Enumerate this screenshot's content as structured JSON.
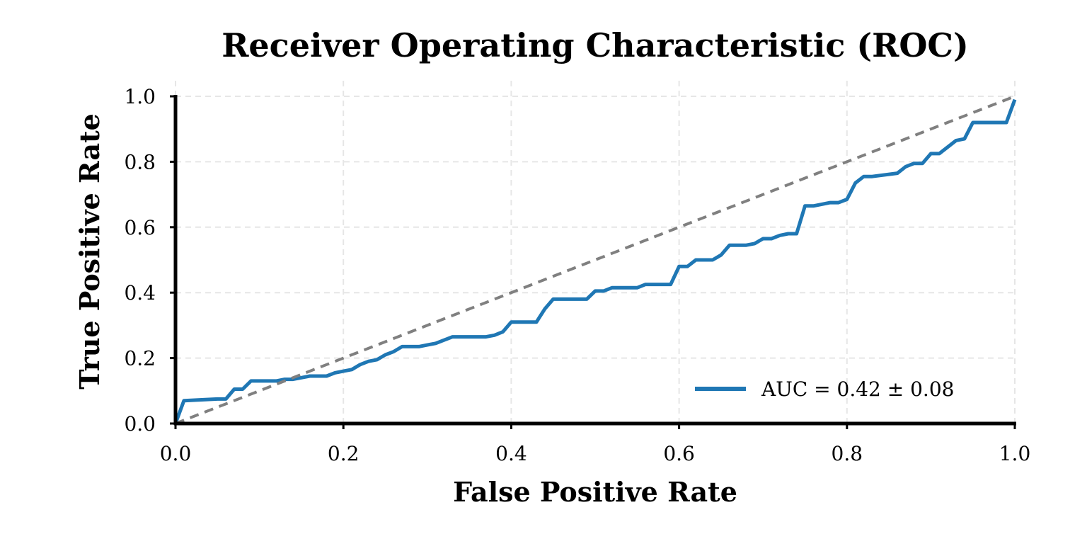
{
  "chart_data": {
    "type": "line",
    "title": "Receiver Operating Characteristic (ROC)",
    "xlabel": "False Positive Rate",
    "ylabel": "True Positive Rate",
    "xlim": [
      0,
      1
    ],
    "ylim": [
      0,
      1
    ],
    "xticks": [
      "0.0",
      "0.2",
      "0.4",
      "0.6",
      "0.8",
      "1.0"
    ],
    "yticks": [
      "0.0",
      "0.2",
      "0.4",
      "0.6",
      "0.8",
      "1.0"
    ],
    "grid": true,
    "legend_position": "lower-right",
    "series": [
      {
        "name": "AUC = 0.42 ± 0.08",
        "color": "#1f77b4",
        "style": "solid",
        "x": [
          0.0,
          0.01,
          0.05,
          0.06,
          0.07,
          0.08,
          0.09,
          0.12,
          0.13,
          0.14,
          0.15,
          0.16,
          0.18,
          0.19,
          0.2,
          0.21,
          0.22,
          0.23,
          0.24,
          0.25,
          0.26,
          0.27,
          0.29,
          0.3,
          0.31,
          0.32,
          0.33,
          0.34,
          0.37,
          0.38,
          0.39,
          0.4,
          0.43,
          0.44,
          0.45,
          0.49,
          0.5,
          0.51,
          0.52,
          0.55,
          0.56,
          0.59,
          0.6,
          0.61,
          0.62,
          0.64,
          0.65,
          0.66,
          0.68,
          0.69,
          0.7,
          0.71,
          0.72,
          0.73,
          0.74,
          0.75,
          0.76,
          0.78,
          0.79,
          0.8,
          0.81,
          0.82,
          0.83,
          0.86,
          0.87,
          0.88,
          0.89,
          0.9,
          0.91,
          0.93,
          0.94,
          0.95,
          0.96,
          0.99,
          1.0
        ],
        "y": [
          0.0,
          0.07,
          0.075,
          0.075,
          0.105,
          0.105,
          0.13,
          0.13,
          0.135,
          0.135,
          0.14,
          0.145,
          0.145,
          0.155,
          0.16,
          0.165,
          0.18,
          0.19,
          0.195,
          0.21,
          0.22,
          0.235,
          0.235,
          0.24,
          0.245,
          0.255,
          0.265,
          0.265,
          0.265,
          0.27,
          0.28,
          0.31,
          0.31,
          0.35,
          0.38,
          0.38,
          0.405,
          0.405,
          0.415,
          0.415,
          0.425,
          0.425,
          0.48,
          0.48,
          0.5,
          0.5,
          0.515,
          0.545,
          0.545,
          0.55,
          0.565,
          0.565,
          0.575,
          0.58,
          0.58,
          0.665,
          0.665,
          0.675,
          0.675,
          0.685,
          0.735,
          0.755,
          0.755,
          0.765,
          0.785,
          0.795,
          0.795,
          0.825,
          0.825,
          0.865,
          0.87,
          0.92,
          0.92,
          0.92,
          0.99
        ]
      },
      {
        "name": "",
        "color": "#808080",
        "style": "dashed",
        "x": [
          0,
          1
        ],
        "y": [
          0,
          1
        ]
      }
    ]
  }
}
